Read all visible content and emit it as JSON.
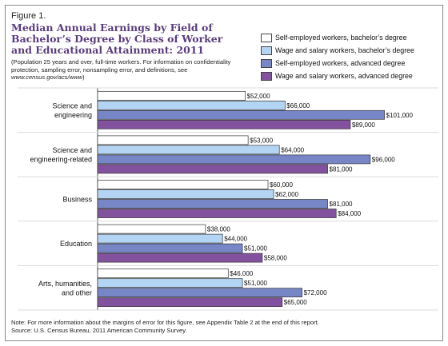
{
  "figure_label": "Figure 1.",
  "title": "Median Annual Earnings by Field of Bachelor’s Degree by Class of Worker and Educational Attainment: 2011",
  "subtitle_text": "(Population 25 years and over, full-time workers. For information on confidentiality protection, sampling error, nonsampling error, and definitions, see ",
  "subtitle_url": "www.census.gov/acs/www",
  "subtitle_end": ")",
  "note_line1": "Note: For more information about the margins of error for this figure, see Appendix Table 2 at the end of this report.",
  "note_line2": "Source: U.S. Census Bureau, 2011 American Community Survey.",
  "colors": {
    "self_bach": "#ffffff",
    "wage_bach": "#b4d4f4",
    "self_adv": "#7686c6",
    "wage_adv": "#82529e",
    "grid": "#cfcfcf",
    "band": "#dcdcdc"
  },
  "chart_data": {
    "type": "bar",
    "orientation": "horizontal",
    "title": "Median Annual Earnings by Field of Bachelor’s Degree by Class of Worker and Educational Attainment: 2011",
    "categories": [
      [
        "Science and",
        "engineering"
      ],
      [
        "Science and",
        "engineering-related"
      ],
      [
        "Business"
      ],
      [
        "Education"
      ],
      [
        "Arts, humanities,",
        "and other"
      ]
    ],
    "series": [
      {
        "name": "Self-employed workers, bachelor’s degree",
        "color_key": "self_bach",
        "values": [
          52000,
          53000,
          60000,
          38000,
          46000
        ],
        "labels": [
          "$52,000",
          "$53,000",
          "$60,000",
          "$38,000",
          "$46,000"
        ]
      },
      {
        "name": "Wage and salary workers, bachelor’s degree",
        "color_key": "wage_bach",
        "values": [
          66000,
          64000,
          62000,
          44000,
          51000
        ],
        "labels": [
          "$66,000",
          "$64,000",
          "$62,000",
          "$44,000",
          "$51,000"
        ]
      },
      {
        "name": "Self-employed workers, advanced degree",
        "color_key": "self_adv",
        "values": [
          101000,
          96000,
          81000,
          51000,
          72000
        ],
        "labels": [
          "$101,000",
          "$96,000",
          "$81,000",
          "$51,000",
          "$72,000"
        ]
      },
      {
        "name": "Wage and salary workers, advanced degree",
        "color_key": "wage_adv",
        "values": [
          89000,
          81000,
          84000,
          58000,
          65000
        ],
        "labels": [
          "$89,000",
          "$81,000",
          "$84,000",
          "$58,000",
          "$65,000"
        ]
      }
    ],
    "xlim": [
      0,
      120000
    ],
    "grid": true,
    "legend_position": "top-right"
  }
}
